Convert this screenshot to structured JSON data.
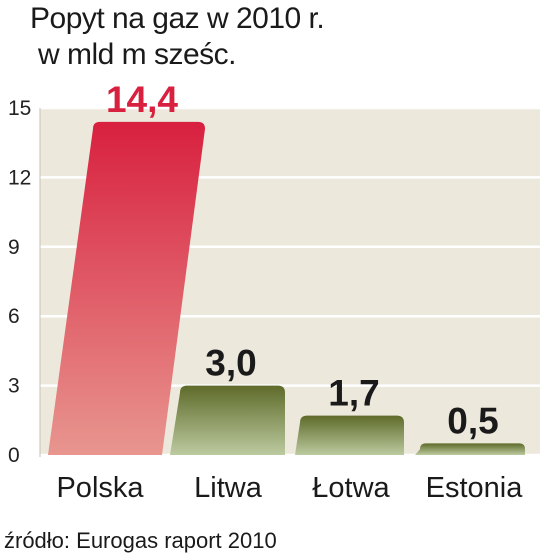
{
  "title_line1": "Popyt na gaz w 2010 r.",
  "title_line2": "w mld m sześc.",
  "source": "źródło: Eurogas raport 2010",
  "colors": {
    "highlight_top": "#d8203f",
    "highlight_bottom": "#e8968f",
    "highlight_label": "#d8203f",
    "bar_top": "#5e6b2a",
    "bar_bottom": "#bccaa0",
    "label": "#1a1a1a",
    "plot_band": "#ece8dc"
  },
  "chart_data": {
    "type": "bar",
    "categories": [
      "Polska",
      "Litwa",
      "Łotwa",
      "Estonia"
    ],
    "values": [
      14.4,
      3.0,
      1.7,
      0.5
    ],
    "value_labels": [
      "14,4",
      "3,0",
      "1,7",
      "0,5"
    ],
    "highlight_index": 0,
    "yticks": [
      0,
      3,
      6,
      9,
      12,
      15
    ],
    "ylim": [
      0,
      15
    ],
    "grid": true,
    "title": "Popyt na gaz w 2010 r.",
    "ylabel": "w mld m sześc."
  }
}
